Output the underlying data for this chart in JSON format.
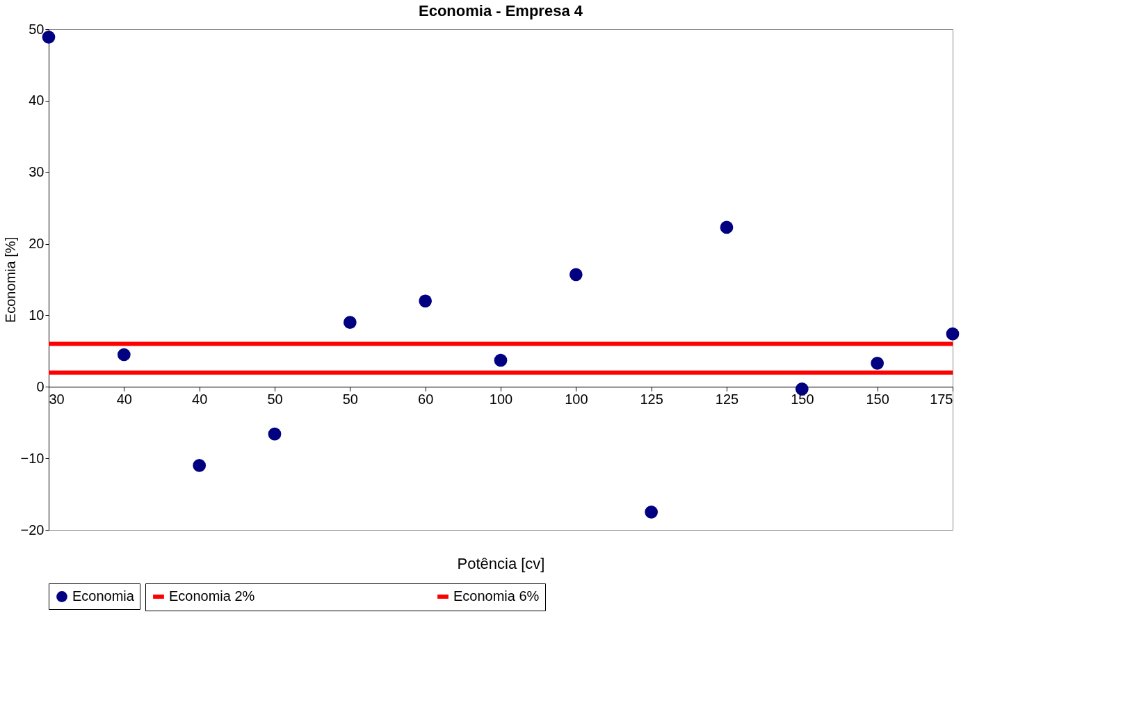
{
  "chart_data": {
    "type": "scatter",
    "title": "Economia - Empresa 4",
    "xlabel": "Potência [cv]",
    "ylabel": "Economia [%]",
    "categories": [
      "30",
      "40",
      "40",
      "50",
      "50",
      "60",
      "100",
      "100",
      "125",
      "125",
      "150",
      "150",
      "175"
    ],
    "series": [
      {
        "name": "Economia",
        "color": "#000080",
        "values": [
          48.9,
          4.5,
          -11,
          -6.6,
          9,
          12,
          3.7,
          15.7,
          -17.5,
          22.3,
          -0.3,
          3.3,
          7.4
        ]
      }
    ],
    "ref_lines": [
      {
        "axis": "y",
        "value": 2,
        "label": "Economia 2%",
        "color": "#ff0000"
      },
      {
        "axis": "y",
        "value": 6,
        "label": "Economia 6%",
        "color": "#ff0000"
      }
    ],
    "ylim": [
      -20,
      50
    ],
    "yticks": [
      -20,
      -10,
      0,
      10,
      20,
      30,
      40,
      50
    ],
    "grid": false,
    "legend": "bottom",
    "marker": "circle"
  }
}
